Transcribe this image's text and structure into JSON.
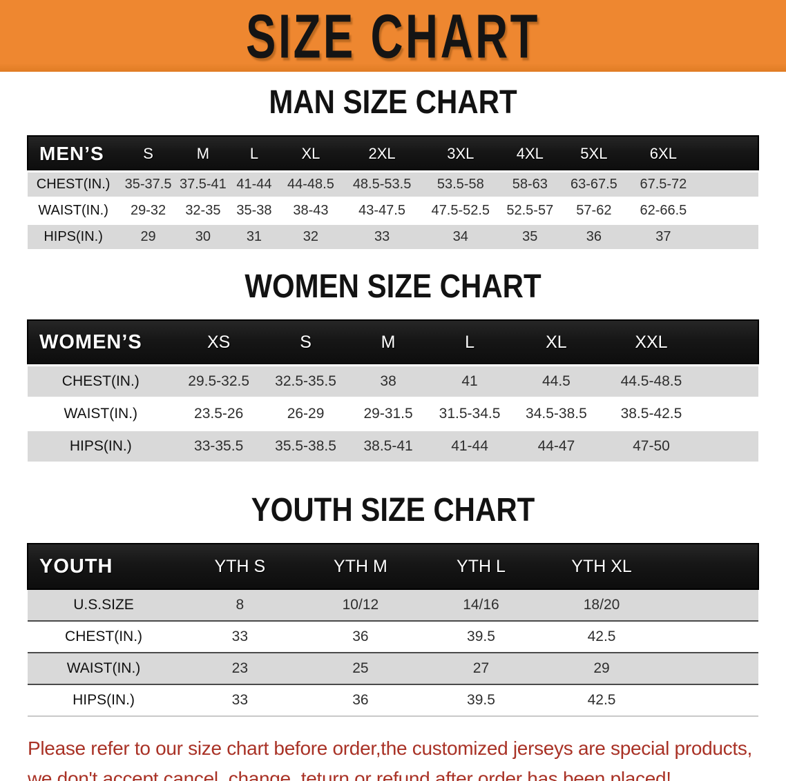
{
  "banner": {
    "title": "SIZE CHART"
  },
  "colors": {
    "banner_bg": "#ee8730",
    "header_bar": "#161616",
    "row_stripe": "#d9d9d9",
    "disclaimer_red": "#a93226",
    "title_black": "#141414"
  },
  "sections": [
    {
      "heading": "MAN SIZE CHART"
    },
    {
      "heading": "WOMEN SIZE CHART"
    },
    {
      "heading": "YOUTH SIZE CHART"
    }
  ],
  "chart_data": [
    {
      "type": "table",
      "title": "MAN SIZE CHART",
      "corner_label": "MEN’S",
      "columns": [
        "S",
        "M",
        "L",
        "XL",
        "2XL",
        "3XL",
        "4XL",
        "5XL",
        "6XL"
      ],
      "rows": [
        {
          "label": "CHEST(IN.)",
          "values": [
            "35-37.5",
            "37.5-41",
            "41-44",
            "44-48.5",
            "48.5-53.5",
            "53.5-58",
            "58-63",
            "63-67.5",
            "67.5-72"
          ]
        },
        {
          "label": "WAIST(IN.)",
          "values": [
            "29-32",
            "32-35",
            "35-38",
            "38-43",
            "43-47.5",
            "47.5-52.5",
            "52.5-57",
            "57-62",
            "62-66.5"
          ]
        },
        {
          "label": "HIPS(IN.)",
          "values": [
            "29",
            "30",
            "31",
            "32",
            "33",
            "34",
            "35",
            "36",
            "37"
          ]
        }
      ]
    },
    {
      "type": "table",
      "title": "WOMEN SIZE CHART",
      "corner_label": "WOMEN’S",
      "columns": [
        "XS",
        "S",
        "M",
        "L",
        "XL",
        "XXL"
      ],
      "rows": [
        {
          "label": "CHEST(IN.)",
          "values": [
            "29.5-32.5",
            "32.5-35.5",
            "38",
            "41",
            "44.5",
            "44.5-48.5"
          ]
        },
        {
          "label": "WAIST(IN.)",
          "values": [
            "23.5-26",
            "26-29",
            "29-31.5",
            "31.5-34.5",
            "34.5-38.5",
            "38.5-42.5"
          ]
        },
        {
          "label": "HIPS(IN.)",
          "values": [
            "33-35.5",
            "35.5-38.5",
            "38.5-41",
            "41-44",
            "44-47",
            "47-50"
          ]
        }
      ]
    },
    {
      "type": "table",
      "title": "YOUTH SIZE CHART",
      "corner_label": "YOUTH",
      "columns": [
        "YTH S",
        "YTH M",
        "YTH L",
        "YTH XL"
      ],
      "rows": [
        {
          "label": "U.S.SIZE",
          "values": [
            "8",
            "10/12",
            "14/16",
            "18/20"
          ]
        },
        {
          "label": "CHEST(IN.)",
          "values": [
            "33",
            "36",
            "39.5",
            "42.5"
          ]
        },
        {
          "label": "WAIST(IN.)",
          "values": [
            "23",
            "25",
            "27",
            "29"
          ]
        },
        {
          "label": "HIPS(IN.)",
          "values": [
            "33",
            "36",
            "39.5",
            "42.5"
          ]
        }
      ]
    }
  ],
  "disclaimer": {
    "line1": "Please refer to our size chart before order,the customized jerseys are special products,",
    "line2": "we don't accept cancel, change, teturn or refund after order has been placed!"
  }
}
